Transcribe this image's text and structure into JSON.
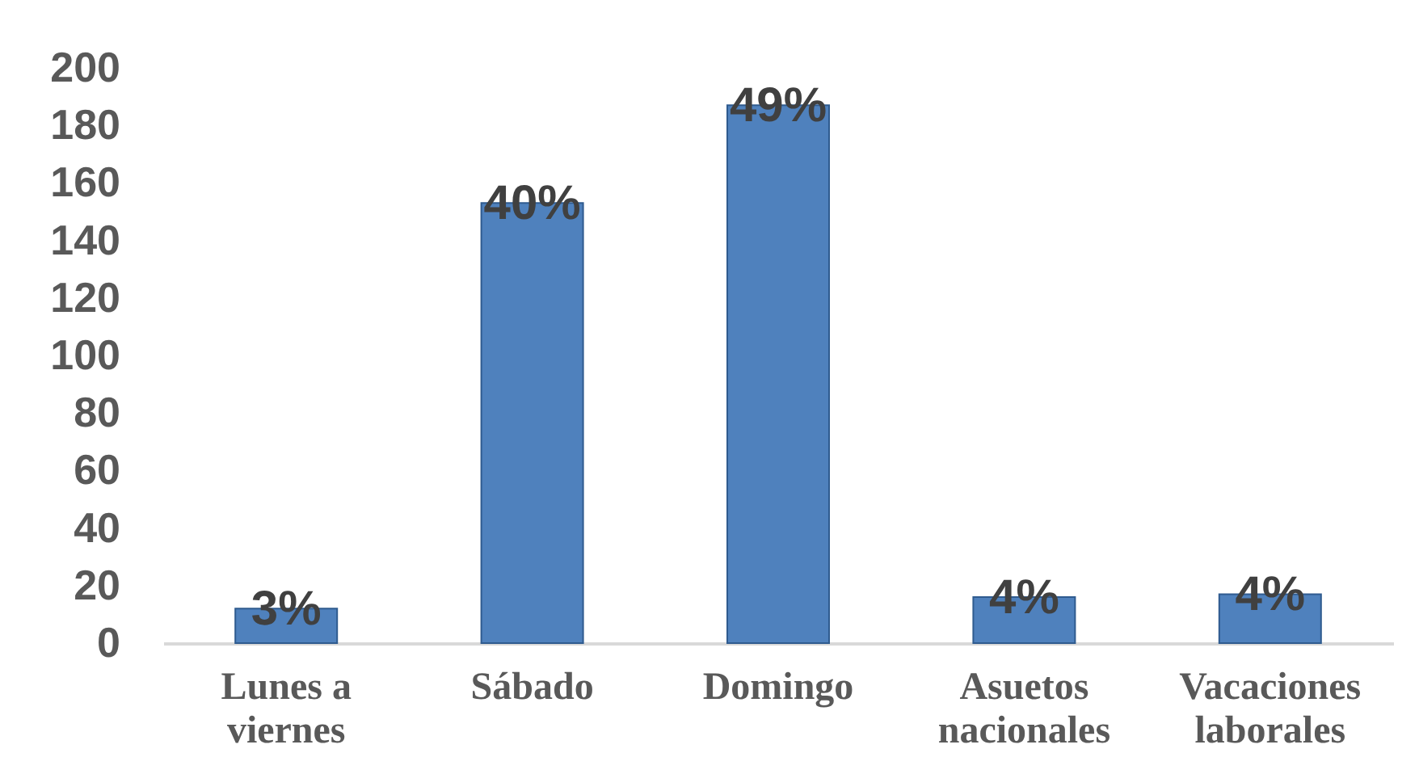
{
  "chart_data": {
    "type": "bar",
    "categories": [
      "Lunes a viernes",
      "Sábado",
      "Domingo",
      "Asuetos nacionales",
      "Vacaciones laborales"
    ],
    "values": [
      12,
      153,
      187,
      16,
      17
    ],
    "color": "#4f81bd",
    "annotations": [
      {
        "text": "3%",
        "x": "Lunes a viernes",
        "y": 12
      },
      {
        "text": "40%",
        "x": "Sábado",
        "y": 153
      },
      {
        "text": "49%",
        "x": "Domingo",
        "y": 187
      },
      {
        "text": "4%",
        "x": "Asuetos nacionales",
        "y": 16
      },
      {
        "text": "4%",
        "x": "Vacaciones laborales",
        "y": 17
      }
    ],
    "ylim": [
      0,
      200
    ],
    "yticks": [
      0,
      20,
      40,
      60,
      80,
      100,
      120,
      140,
      160,
      180,
      200
    ],
    "grid": false,
    "legend": false
  }
}
